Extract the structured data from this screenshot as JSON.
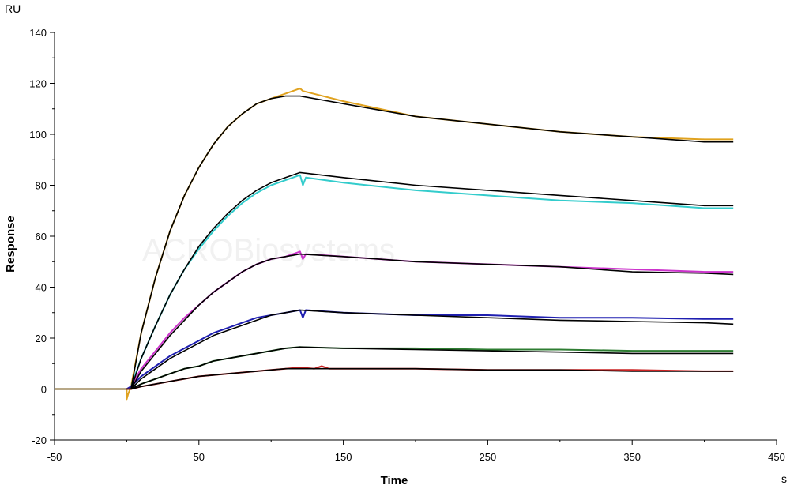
{
  "chart_data": {
    "type": "line",
    "xlabel": "Time",
    "ylabel": "Response",
    "x_unit": "s",
    "y_unit": "RU",
    "xlim": [
      -50,
      450
    ],
    "ylim": [
      -20,
      140
    ],
    "x_ticks": [
      -50,
      50,
      150,
      250,
      350,
      450
    ],
    "y_ticks": [
      -20,
      0,
      20,
      40,
      60,
      80,
      100,
      120,
      140
    ],
    "grid": false,
    "legend": "none",
    "watermark": "ACROBiosystems",
    "series": [
      {
        "color": "#e0a21f",
        "role": "measured",
        "points": [
          [
            -50,
            0
          ],
          [
            0,
            0
          ],
          [
            0,
            -4
          ],
          [
            1,
            -2
          ],
          [
            3,
            1
          ],
          [
            10,
            22
          ],
          [
            20,
            44
          ],
          [
            30,
            62
          ],
          [
            40,
            76
          ],
          [
            50,
            87
          ],
          [
            60,
            96
          ],
          [
            70,
            103
          ],
          [
            80,
            108
          ],
          [
            90,
            112
          ],
          [
            100,
            114
          ],
          [
            110,
            116
          ],
          [
            120,
            118
          ],
          [
            122,
            117
          ],
          [
            150,
            113
          ],
          [
            200,
            107
          ],
          [
            250,
            104
          ],
          [
            300,
            101
          ],
          [
            350,
            99
          ],
          [
            400,
            98
          ],
          [
            420,
            98
          ]
        ]
      },
      {
        "color": "#000000",
        "role": "fit",
        "points": [
          [
            -50,
            0
          ],
          [
            0,
            0
          ],
          [
            3,
            0
          ],
          [
            10,
            22
          ],
          [
            20,
            44
          ],
          [
            30,
            62
          ],
          [
            40,
            76
          ],
          [
            50,
            87
          ],
          [
            60,
            96
          ],
          [
            70,
            103
          ],
          [
            80,
            108
          ],
          [
            90,
            112
          ],
          [
            100,
            114
          ],
          [
            110,
            115
          ],
          [
            120,
            115
          ],
          [
            150,
            112
          ],
          [
            200,
            107
          ],
          [
            250,
            104
          ],
          [
            300,
            101
          ],
          [
            350,
            99
          ],
          [
            400,
            97
          ],
          [
            420,
            97
          ]
        ]
      },
      {
        "color": "#33cccc",
        "role": "measured",
        "points": [
          [
            0,
            0
          ],
          [
            3,
            1
          ],
          [
            10,
            12
          ],
          [
            20,
            25
          ],
          [
            30,
            37
          ],
          [
            40,
            47
          ],
          [
            50,
            55
          ],
          [
            60,
            62
          ],
          [
            70,
            68
          ],
          [
            80,
            73
          ],
          [
            90,
            77
          ],
          [
            100,
            80
          ],
          [
            110,
            82
          ],
          [
            120,
            84
          ],
          [
            122,
            80
          ],
          [
            124,
            83
          ],
          [
            150,
            81
          ],
          [
            200,
            78
          ],
          [
            250,
            76
          ],
          [
            300,
            74
          ],
          [
            350,
            73
          ],
          [
            400,
            71
          ],
          [
            420,
            71
          ]
        ]
      },
      {
        "color": "#000000",
        "role": "fit",
        "points": [
          [
            3,
            0
          ],
          [
            10,
            12
          ],
          [
            20,
            25
          ],
          [
            30,
            37
          ],
          [
            40,
            47
          ],
          [
            50,
            56
          ],
          [
            60,
            63
          ],
          [
            70,
            69
          ],
          [
            80,
            74
          ],
          [
            90,
            78
          ],
          [
            100,
            81
          ],
          [
            110,
            83
          ],
          [
            120,
            85
          ],
          [
            150,
            83
          ],
          [
            200,
            80
          ],
          [
            250,
            78
          ],
          [
            300,
            76
          ],
          [
            350,
            74
          ],
          [
            400,
            72
          ],
          [
            420,
            72
          ]
        ]
      },
      {
        "color": "#cc33cc",
        "role": "measured",
        "points": [
          [
            0,
            0
          ],
          [
            3,
            1
          ],
          [
            10,
            8
          ],
          [
            20,
            15
          ],
          [
            30,
            22
          ],
          [
            40,
            28
          ],
          [
            50,
            33
          ],
          [
            60,
            38
          ],
          [
            70,
            42
          ],
          [
            80,
            46
          ],
          [
            90,
            49
          ],
          [
            100,
            51
          ],
          [
            110,
            52
          ],
          [
            120,
            54
          ],
          [
            122,
            51
          ],
          [
            124,
            53
          ],
          [
            150,
            52
          ],
          [
            200,
            50
          ],
          [
            250,
            49
          ],
          [
            300,
            48
          ],
          [
            350,
            47
          ],
          [
            400,
            46
          ],
          [
            420,
            46
          ]
        ]
      },
      {
        "color": "#000000",
        "role": "fit",
        "points": [
          [
            3,
            0
          ],
          [
            10,
            7
          ],
          [
            20,
            14
          ],
          [
            30,
            21
          ],
          [
            40,
            27
          ],
          [
            50,
            33
          ],
          [
            60,
            38
          ],
          [
            70,
            42
          ],
          [
            80,
            46
          ],
          [
            90,
            49
          ],
          [
            100,
            51
          ],
          [
            110,
            52
          ],
          [
            120,
            53
          ],
          [
            150,
            52
          ],
          [
            200,
            50
          ],
          [
            250,
            49
          ],
          [
            300,
            48
          ],
          [
            350,
            46
          ],
          [
            400,
            45.5
          ],
          [
            420,
            45
          ]
        ]
      },
      {
        "color": "#1f1fb0",
        "role": "measured",
        "points": [
          [
            0,
            0
          ],
          [
            3,
            1
          ],
          [
            10,
            5
          ],
          [
            20,
            9
          ],
          [
            30,
            13
          ],
          [
            40,
            16
          ],
          [
            50,
            19
          ],
          [
            60,
            22
          ],
          [
            70,
            24
          ],
          [
            80,
            26
          ],
          [
            90,
            28
          ],
          [
            100,
            29
          ],
          [
            110,
            30
          ],
          [
            120,
            31
          ],
          [
            122,
            28
          ],
          [
            124,
            31
          ],
          [
            150,
            30
          ],
          [
            200,
            29
          ],
          [
            250,
            29
          ],
          [
            300,
            28
          ],
          [
            350,
            28
          ],
          [
            400,
            27.5
          ],
          [
            420,
            27.5
          ]
        ]
      },
      {
        "color": "#000000",
        "role": "fit",
        "points": [
          [
            3,
            0
          ],
          [
            10,
            4
          ],
          [
            20,
            8
          ],
          [
            30,
            12
          ],
          [
            40,
            15
          ],
          [
            50,
            18
          ],
          [
            60,
            21
          ],
          [
            70,
            23
          ],
          [
            80,
            25
          ],
          [
            90,
            27
          ],
          [
            100,
            29
          ],
          [
            110,
            30
          ],
          [
            120,
            31
          ],
          [
            150,
            30
          ],
          [
            200,
            29
          ],
          [
            250,
            28
          ],
          [
            300,
            27
          ],
          [
            350,
            26.5
          ],
          [
            400,
            26
          ],
          [
            420,
            25.5
          ]
        ]
      },
      {
        "color": "#2e7d32",
        "role": "measured",
        "points": [
          [
            0,
            0
          ],
          [
            3,
            0
          ],
          [
            10,
            2
          ],
          [
            20,
            4
          ],
          [
            30,
            6
          ],
          [
            40,
            8
          ],
          [
            50,
            9
          ],
          [
            60,
            11
          ],
          [
            70,
            12
          ],
          [
            80,
            13
          ],
          [
            90,
            14
          ],
          [
            100,
            15
          ],
          [
            110,
            16
          ],
          [
            120,
            16.5
          ],
          [
            150,
            16
          ],
          [
            200,
            16
          ],
          [
            250,
            15.5
          ],
          [
            300,
            15.5
          ],
          [
            350,
            15
          ],
          [
            400,
            15
          ],
          [
            420,
            15
          ]
        ]
      },
      {
        "color": "#000000",
        "role": "fit",
        "points": [
          [
            3,
            0
          ],
          [
            10,
            2
          ],
          [
            20,
            4
          ],
          [
            30,
            6
          ],
          [
            40,
            8
          ],
          [
            50,
            9
          ],
          [
            60,
            11
          ],
          [
            70,
            12
          ],
          [
            80,
            13
          ],
          [
            90,
            14
          ],
          [
            100,
            15
          ],
          [
            110,
            16
          ],
          [
            120,
            16.5
          ],
          [
            150,
            16
          ],
          [
            200,
            15.5
          ],
          [
            250,
            15
          ],
          [
            300,
            14.5
          ],
          [
            350,
            14
          ],
          [
            400,
            14
          ],
          [
            420,
            14
          ]
        ]
      },
      {
        "color": "#cc2222",
        "role": "measured",
        "points": [
          [
            0,
            0
          ],
          [
            3,
            0
          ],
          [
            10,
            1
          ],
          [
            20,
            2
          ],
          [
            30,
            3
          ],
          [
            40,
            4
          ],
          [
            50,
            5
          ],
          [
            60,
            5.5
          ],
          [
            70,
            6
          ],
          [
            80,
            6.5
          ],
          [
            90,
            7
          ],
          [
            100,
            7.5
          ],
          [
            110,
            8
          ],
          [
            120,
            8.5
          ],
          [
            130,
            8
          ],
          [
            135,
            9
          ],
          [
            140,
            8
          ],
          [
            150,
            8
          ],
          [
            200,
            8
          ],
          [
            250,
            7.5
          ],
          [
            300,
            7.5
          ],
          [
            350,
            7.5
          ],
          [
            400,
            7
          ],
          [
            420,
            7
          ]
        ]
      },
      {
        "color": "#000000",
        "role": "fit",
        "points": [
          [
            3,
            0
          ],
          [
            10,
            1
          ],
          [
            20,
            2
          ],
          [
            30,
            3
          ],
          [
            40,
            4
          ],
          [
            50,
            5
          ],
          [
            60,
            5.5
          ],
          [
            70,
            6
          ],
          [
            80,
            6.5
          ],
          [
            90,
            7
          ],
          [
            100,
            7.5
          ],
          [
            110,
            8
          ],
          [
            120,
            8
          ],
          [
            150,
            8
          ],
          [
            200,
            8
          ],
          [
            250,
            7.5
          ],
          [
            300,
            7.5
          ],
          [
            350,
            7
          ],
          [
            400,
            7
          ],
          [
            420,
            7
          ]
        ]
      }
    ]
  }
}
